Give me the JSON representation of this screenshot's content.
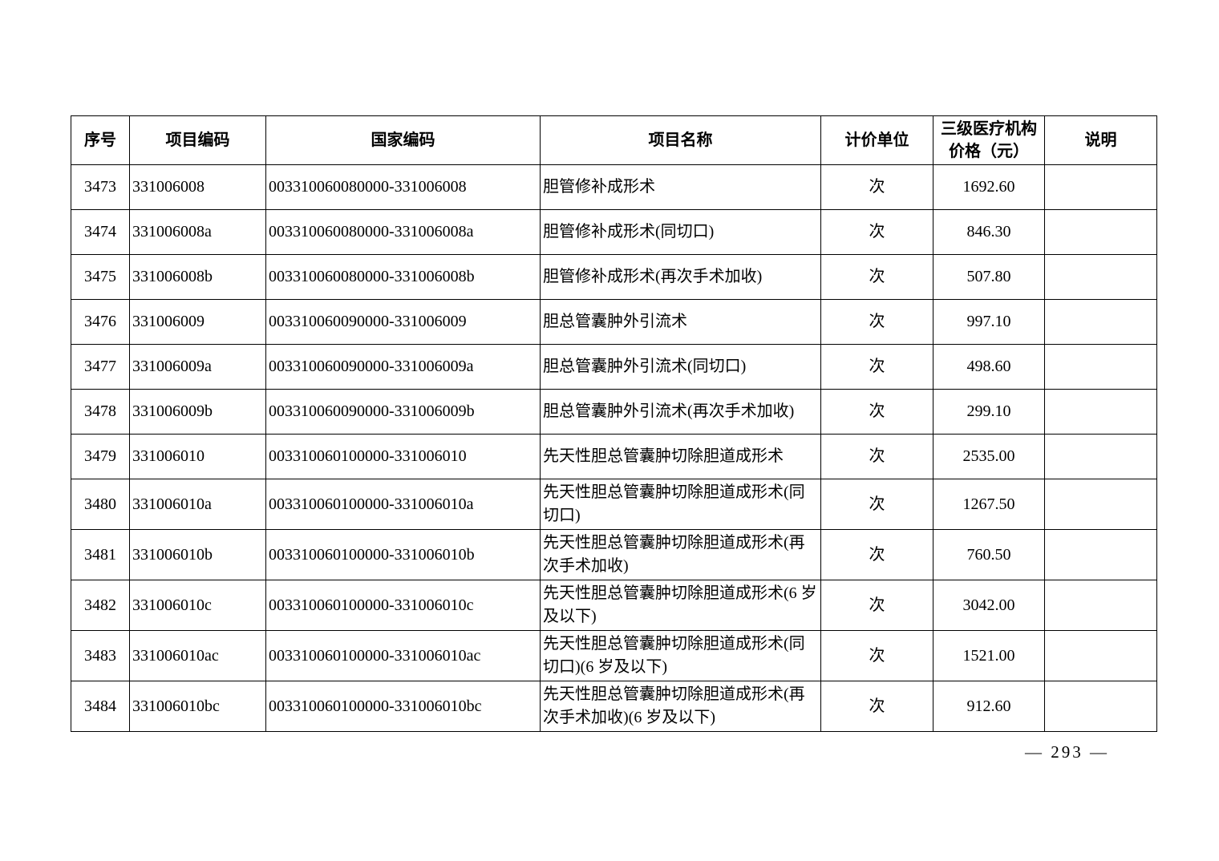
{
  "page": {
    "number_label": "— 293 —"
  },
  "table": {
    "headers": [
      "序号",
      "项目编码",
      "国家编码",
      "项目名称",
      "计价单位",
      "三级医疗机构价格（元）",
      "说明"
    ],
    "rows": [
      {
        "seq": "3473",
        "code": "331006008",
        "national_code": "003310060080000-331006008",
        "name": "胆管修补成形术",
        "unit": "次",
        "price": "1692.60",
        "note": ""
      },
      {
        "seq": "3474",
        "code": "331006008a",
        "national_code": "003310060080000-331006008a",
        "name": "胆管修补成形术(同切口)",
        "unit": "次",
        "price": "846.30",
        "note": ""
      },
      {
        "seq": "3475",
        "code": "331006008b",
        "national_code": "003310060080000-331006008b",
        "name": "胆管修补成形术(再次手术加收)",
        "unit": "次",
        "price": "507.80",
        "note": ""
      },
      {
        "seq": "3476",
        "code": "331006009",
        "national_code": "003310060090000-331006009",
        "name": "胆总管囊肿外引流术",
        "unit": "次",
        "price": "997.10",
        "note": ""
      },
      {
        "seq": "3477",
        "code": "331006009a",
        "national_code": "003310060090000-331006009a",
        "name": "胆总管囊肿外引流术(同切口)",
        "unit": "次",
        "price": "498.60",
        "note": ""
      },
      {
        "seq": "3478",
        "code": "331006009b",
        "national_code": "003310060090000-331006009b",
        "name": "胆总管囊肿外引流术(再次手术加收)",
        "unit": "次",
        "price": "299.10",
        "note": ""
      },
      {
        "seq": "3479",
        "code": "331006010",
        "national_code": "003310060100000-331006010",
        "name": "先天性胆总管囊肿切除胆道成形术",
        "unit": "次",
        "price": "2535.00",
        "note": ""
      },
      {
        "seq": "3480",
        "code": "331006010a",
        "national_code": "003310060100000-331006010a",
        "name": "先天性胆总管囊肿切除胆道成形术(同切口)",
        "unit": "次",
        "price": "1267.50",
        "note": ""
      },
      {
        "seq": "3481",
        "code": "331006010b",
        "national_code": "003310060100000-331006010b",
        "name": "先天性胆总管囊肿切除胆道成形术(再次手术加收)",
        "unit": "次",
        "price": "760.50",
        "note": ""
      },
      {
        "seq": "3482",
        "code": "331006010c",
        "national_code": "003310060100000-331006010c",
        "name": "先天性胆总管囊肿切除胆道成形术(6 岁及以下)",
        "unit": "次",
        "price": "3042.00",
        "note": ""
      },
      {
        "seq": "3483",
        "code": "331006010ac",
        "national_code": "003310060100000-331006010ac",
        "name": "先天性胆总管囊肿切除胆道成形术(同切口)(6 岁及以下)",
        "unit": "次",
        "price": "1521.00",
        "note": ""
      },
      {
        "seq": "3484",
        "code": "331006010bc",
        "national_code": "003310060100000-331006010bc",
        "name": "先天性胆总管囊肿切除胆道成形术(再次手术加收)(6 岁及以下)",
        "unit": "次",
        "price": "912.60",
        "note": ""
      }
    ]
  }
}
